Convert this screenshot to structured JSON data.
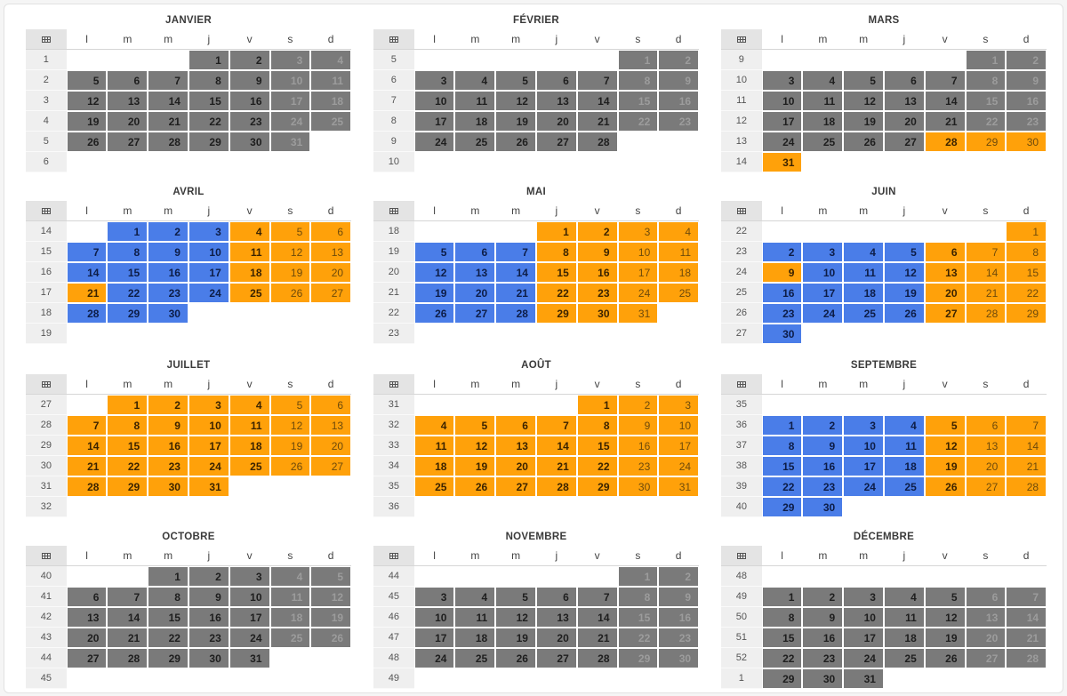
{
  "colors": {
    "school_period": "#7a7a7a",
    "blue_period": "#4a7de8",
    "orange_period": "#ffa10a"
  },
  "header_icon": "calendar-grid-icon",
  "day_names": [
    "l",
    "m",
    "m",
    "j",
    "v",
    "s",
    "d"
  ],
  "months": [
    {
      "name": "JANVIER",
      "weeks": [
        1,
        2,
        3,
        4,
        5,
        6
      ],
      "first_offset": 3,
      "days": 31,
      "ranges": [
        {
          "from": 1,
          "to": 31,
          "color": "gray"
        }
      ]
    },
    {
      "name": "FÉVRIER",
      "weeks": [
        5,
        6,
        7,
        8,
        9,
        10
      ],
      "first_offset": 5,
      "days": 28,
      "ranges": [
        {
          "from": 1,
          "to": 28,
          "color": "gray"
        }
      ]
    },
    {
      "name": "MARS",
      "weeks": [
        9,
        10,
        11,
        12,
        13,
        14
      ],
      "first_offset": 5,
      "days": 31,
      "ranges": [
        {
          "from": 1,
          "to": 27,
          "color": "gray"
        },
        {
          "from": 28,
          "to": 30,
          "color": "orange"
        },
        {
          "from": 31,
          "to": 31,
          "color": "orange"
        }
      ]
    },
    {
      "name": "AVRIL",
      "weeks": [
        14,
        15,
        16,
        17,
        18,
        19
      ],
      "first_offset": 1,
      "days": 30,
      "ranges": [
        {
          "from": 1,
          "to": 3,
          "color": "blue"
        },
        {
          "from": 4,
          "to": 6,
          "color": "orange"
        },
        {
          "from": 7,
          "to": 10,
          "color": "blue"
        },
        {
          "from": 11,
          "to": 13,
          "color": "orange"
        },
        {
          "from": 14,
          "to": 17,
          "color": "blue"
        },
        {
          "from": 18,
          "to": 21,
          "color": "orange"
        },
        {
          "from": 22,
          "to": 24,
          "color": "blue"
        },
        {
          "from": 25,
          "to": 27,
          "color": "orange"
        },
        {
          "from": 28,
          "to": 30,
          "color": "blue"
        }
      ]
    },
    {
      "name": "MAI",
      "weeks": [
        18,
        19,
        20,
        21,
        22,
        23
      ],
      "first_offset": 3,
      "days": 31,
      "ranges": [
        {
          "from": 1,
          "to": 4,
          "color": "orange"
        },
        {
          "from": 5,
          "to": 7,
          "color": "blue"
        },
        {
          "from": 8,
          "to": 11,
          "color": "orange"
        },
        {
          "from": 12,
          "to": 14,
          "color": "blue"
        },
        {
          "from": 15,
          "to": 18,
          "color": "orange"
        },
        {
          "from": 19,
          "to": 21,
          "color": "blue"
        },
        {
          "from": 22,
          "to": 25,
          "color": "orange"
        },
        {
          "from": 26,
          "to": 28,
          "color": "blue"
        },
        {
          "from": 29,
          "to": 31,
          "color": "orange"
        }
      ]
    },
    {
      "name": "JUIN",
      "weeks": [
        22,
        23,
        24,
        25,
        26,
        27
      ],
      "first_offset": 6,
      "days": 30,
      "ranges": [
        {
          "from": 1,
          "to": 1,
          "color": "orange"
        },
        {
          "from": 2,
          "to": 5,
          "color": "blue"
        },
        {
          "from": 6,
          "to": 9,
          "color": "orange"
        },
        {
          "from": 10,
          "to": 12,
          "color": "blue"
        },
        {
          "from": 13,
          "to": 15,
          "color": "orange"
        },
        {
          "from": 16,
          "to": 19,
          "color": "blue"
        },
        {
          "from": 20,
          "to": 22,
          "color": "orange"
        },
        {
          "from": 23,
          "to": 26,
          "color": "blue"
        },
        {
          "from": 27,
          "to": 29,
          "color": "orange"
        },
        {
          "from": 30,
          "to": 30,
          "color": "blue"
        }
      ]
    },
    {
      "name": "JUILLET",
      "weeks": [
        27,
        28,
        29,
        30,
        31,
        32
      ],
      "first_offset": 1,
      "days": 31,
      "ranges": [
        {
          "from": 1,
          "to": 31,
          "color": "orange"
        }
      ]
    },
    {
      "name": "AOÛT",
      "weeks": [
        31,
        32,
        33,
        34,
        35,
        36
      ],
      "first_offset": 4,
      "days": 31,
      "ranges": [
        {
          "from": 1,
          "to": 31,
          "color": "orange"
        }
      ]
    },
    {
      "name": "SEPTEMBRE",
      "weeks": [
        35,
        36,
        37,
        38,
        39,
        40
      ],
      "first_offset": 0,
      "days": 30,
      "skip_first_row": true,
      "ranges": [
        {
          "from": 1,
          "to": 4,
          "color": "blue"
        },
        {
          "from": 5,
          "to": 7,
          "color": "orange"
        },
        {
          "from": 8,
          "to": 11,
          "color": "blue"
        },
        {
          "from": 12,
          "to": 14,
          "color": "orange"
        },
        {
          "from": 15,
          "to": 18,
          "color": "blue"
        },
        {
          "from": 19,
          "to": 21,
          "color": "orange"
        },
        {
          "from": 22,
          "to": 25,
          "color": "blue"
        },
        {
          "from": 26,
          "to": 28,
          "color": "orange"
        },
        {
          "from": 29,
          "to": 30,
          "color": "blue"
        }
      ]
    },
    {
      "name": "OCTOBRE",
      "weeks": [
        40,
        41,
        42,
        43,
        44,
        45
      ],
      "first_offset": 2,
      "days": 31,
      "ranges": [
        {
          "from": 1,
          "to": 31,
          "color": "gray"
        }
      ]
    },
    {
      "name": "NOVEMBRE",
      "weeks": [
        44,
        45,
        46,
        47,
        48,
        49
      ],
      "first_offset": 5,
      "days": 30,
      "ranges": [
        {
          "from": 1,
          "to": 30,
          "color": "gray"
        }
      ]
    },
    {
      "name": "DÉCEMBRE",
      "weeks": [
        48,
        49,
        50,
        51,
        52,
        1
      ],
      "first_offset": 0,
      "days": 31,
      "skip_first_row": true,
      "ranges": [
        {
          "from": 1,
          "to": 31,
          "color": "gray"
        }
      ]
    }
  ]
}
